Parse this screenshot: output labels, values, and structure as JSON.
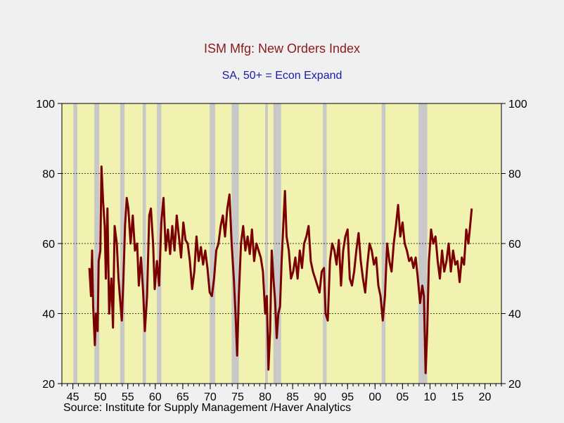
{
  "chart_data": {
    "type": "line",
    "title": "ISM Mfg: New Orders Index",
    "subtitle": "SA, 50+ = Econ Expand",
    "source": "Source:  Institute for Supply Management /Haver Analytics",
    "xlim": [
      1943,
      2023
    ],
    "ylim": [
      20,
      100
    ],
    "y_ticks": [
      20,
      40,
      60,
      80,
      100
    ],
    "y_tick_labels_left": [
      "20",
      "40",
      "60",
      "80",
      "100"
    ],
    "y_tick_labels_right": [
      "20",
      "40",
      "60",
      "80",
      "100"
    ],
    "x_ticks": [
      1945,
      1950,
      1955,
      1960,
      1965,
      1970,
      1975,
      1980,
      1985,
      1990,
      1995,
      2000,
      2005,
      2010,
      2015,
      2020
    ],
    "x_tick_labels": [
      "45",
      "50",
      "55",
      "60",
      "65",
      "70",
      "75",
      "80",
      "85",
      "90",
      "95",
      "00",
      "05",
      "10",
      "15",
      "20"
    ],
    "gridlines_y": [
      40,
      60,
      80
    ],
    "plot_background": "#f2f2b0",
    "line_color": "#7a0000",
    "recession_color": "#c8c8c8",
    "recessions": [
      [
        1945.1,
        1945.8
      ],
      [
        1948.9,
        1949.8
      ],
      [
        1953.6,
        1954.4
      ],
      [
        1957.7,
        1958.3
      ],
      [
        1960.3,
        1961.1
      ],
      [
        1969.9,
        1970.9
      ],
      [
        1973.9,
        1975.2
      ],
      [
        1980.0,
        1980.5
      ],
      [
        1981.5,
        1982.9
      ],
      [
        1990.5,
        1991.2
      ],
      [
        2001.2,
        2001.9
      ],
      [
        2007.9,
        2009.5
      ]
    ],
    "series": [
      {
        "x": [
          1948.0,
          1948.3,
          1948.5,
          1948.7,
          1949.0,
          1949.2,
          1949.5,
          1949.7,
          1950.0,
          1950.2,
          1950.5,
          1950.8,
          1951.0,
          1951.3,
          1951.6,
          1952.0,
          1952.3,
          1952.6,
          1953.0,
          1953.3,
          1953.6,
          1953.9,
          1954.2,
          1954.5,
          1954.8,
          1955.1,
          1955.5,
          1955.9,
          1956.3,
          1956.7,
          1957.0,
          1957.4,
          1957.8,
          1958.1,
          1958.5,
          1958.9,
          1959.2,
          1959.6,
          1959.9,
          1960.3,
          1960.7,
          1961.1,
          1961.5,
          1961.9,
          1962.3,
          1962.7,
          1963.1,
          1963.5,
          1963.9,
          1964.3,
          1964.7,
          1965.1,
          1965.5,
          1965.9,
          1966.3,
          1966.7,
          1967.1,
          1967.5,
          1967.9,
          1968.3,
          1968.7,
          1969.1,
          1969.5,
          1969.9,
          1970.3,
          1970.7,
          1971.1,
          1971.5,
          1971.9,
          1972.3,
          1972.7,
          1973.1,
          1973.5,
          1973.9,
          1974.3,
          1974.6,
          1974.9,
          1975.2,
          1975.6,
          1976.0,
          1976.4,
          1976.8,
          1977.2,
          1977.6,
          1978.0,
          1978.4,
          1978.8,
          1979.2,
          1979.6,
          1980.0,
          1980.3,
          1980.6,
          1980.9,
          1981.2,
          1981.5,
          1981.8,
          1982.1,
          1982.4,
          1982.7,
          1983.0,
          1983.3,
          1983.6,
          1983.9,
          1984.3,
          1984.7,
          1985.1,
          1985.5,
          1985.9,
          1986.3,
          1986.7,
          1987.1,
          1987.5,
          1987.9,
          1988.3,
          1988.7,
          1989.1,
          1989.5,
          1989.9,
          1990.3,
          1990.7,
          1991.0,
          1991.4,
          1991.8,
          1992.2,
          1992.6,
          1993.0,
          1993.4,
          1993.8,
          1994.2,
          1994.6,
          1995.0,
          1995.4,
          1995.8,
          1996.2,
          1996.6,
          1997.0,
          1997.4,
          1997.8,
          1998.2,
          1998.6,
          1999.0,
          1999.4,
          1999.8,
          2000.2,
          2000.6,
          2001.0,
          2001.4,
          2001.8,
          2002.2,
          2002.6,
          2003.0,
          2003.4,
          2003.8,
          2004.2,
          2004.6,
          2005.0,
          2005.4,
          2005.8,
          2006.2,
          2006.6,
          2007.0,
          2007.4,
          2007.8,
          2008.2,
          2008.6,
          2008.9,
          2009.2,
          2009.5,
          2009.8,
          2010.2,
          2010.6,
          2011.0,
          2011.4,
          2011.8,
          2012.2,
          2012.6,
          2013.0,
          2013.4,
          2013.8,
          2014.2,
          2014.6,
          2015.0,
          2015.4,
          2015.8,
          2016.2,
          2016.6,
          2017.0,
          2017.3,
          2017.6
        ],
        "y": [
          53,
          45,
          58,
          42,
          31,
          40,
          35,
          55,
          58,
          82,
          72,
          65,
          50,
          70,
          40,
          50,
          36,
          65,
          60,
          50,
          44,
          38,
          50,
          65,
          73,
          70,
          60,
          68,
          58,
          60,
          48,
          56,
          46,
          35,
          45,
          68,
          70,
          60,
          47,
          55,
          48,
          66,
          73,
          58,
          64,
          57,
          65,
          58,
          68,
          62,
          56,
          66,
          61,
          60,
          55,
          47,
          52,
          62,
          55,
          59,
          54,
          58,
          53,
          46,
          45,
          50,
          58,
          60,
          65,
          68,
          62,
          70,
          74,
          60,
          50,
          40,
          28,
          45,
          60,
          65,
          58,
          62,
          57,
          64,
          55,
          60,
          58,
          56,
          52,
          40,
          45,
          24,
          35,
          58,
          50,
          44,
          33,
          40,
          42,
          55,
          65,
          75,
          62,
          58,
          50,
          52,
          56,
          50,
          58,
          53,
          60,
          62,
          65,
          55,
          52,
          50,
          48,
          46,
          52,
          53,
          40,
          38,
          55,
          60,
          58,
          54,
          61,
          48,
          58,
          62,
          64,
          50,
          48,
          52,
          58,
          63,
          55,
          50,
          46,
          54,
          60,
          58,
          54,
          56,
          48,
          45,
          38,
          45,
          60,
          55,
          52,
          60,
          65,
          71,
          62,
          66,
          60,
          58,
          55,
          56,
          53,
          56,
          50,
          43,
          48,
          45,
          23,
          35,
          55,
          64,
          60,
          62,
          55,
          50,
          58,
          52,
          55,
          60,
          52,
          58,
          54,
          55,
          49,
          56,
          54,
          64,
          60,
          65,
          70
        ]
      }
    ]
  }
}
